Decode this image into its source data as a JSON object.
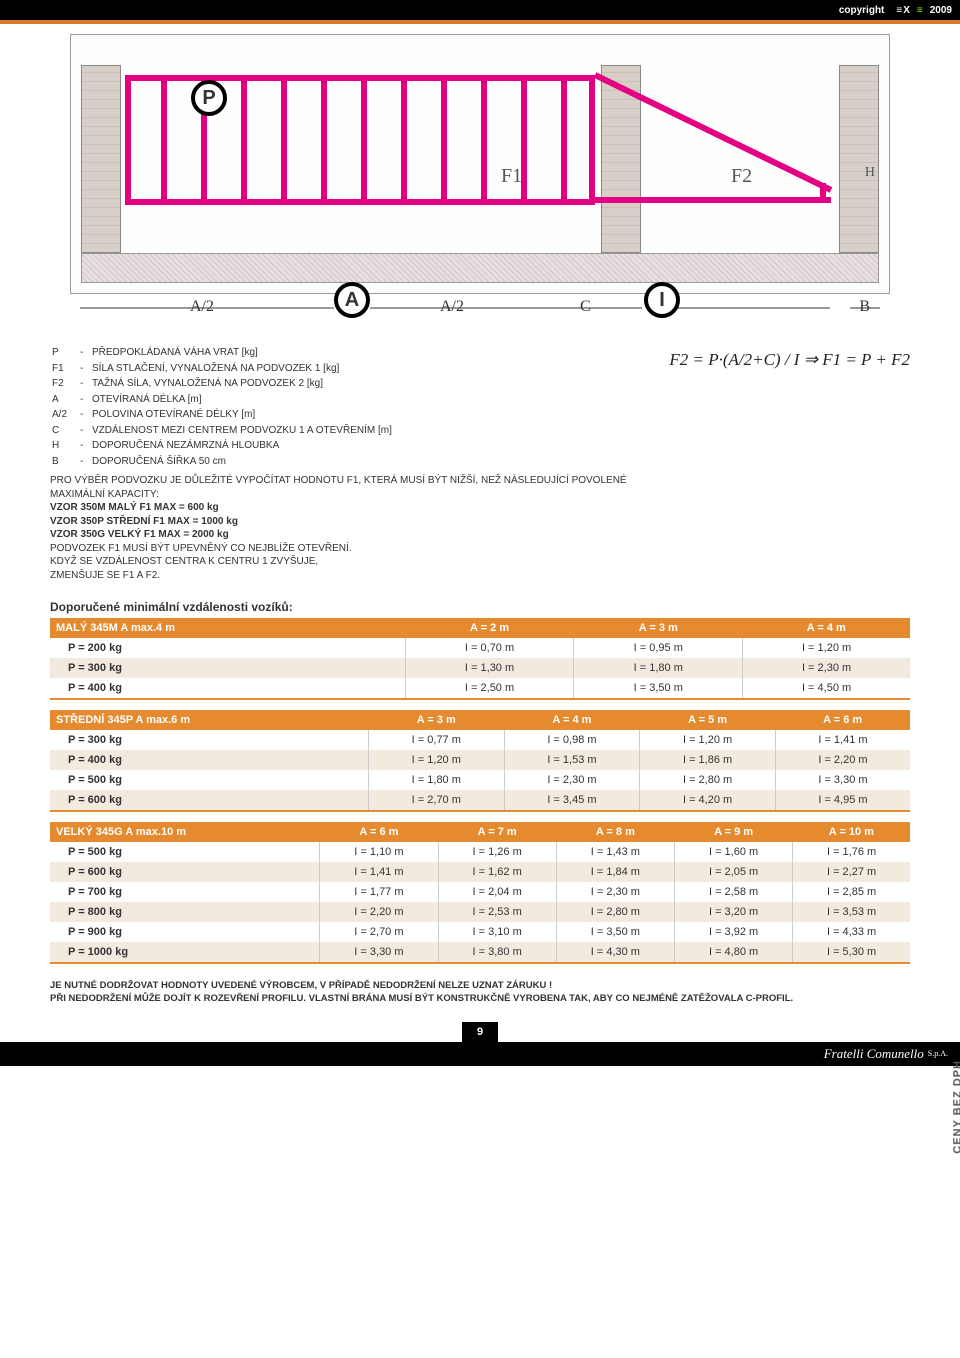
{
  "topbar": {
    "copyright": "copyright",
    "brand_a": "≡X",
    "brand_b": "≡",
    "year": "2009"
  },
  "diagram": {
    "P": "P",
    "A": "A",
    "I": "I",
    "F1": "F1",
    "F2": "F2",
    "A2a": "A/2",
    "A2b": "A/2",
    "C": "C",
    "B": "B",
    "H": "H",
    "formula": "F2 = P·(A/2+C) / I   ⇒   F1 = P + F2"
  },
  "defs": [
    [
      "P",
      "PŘEDPOKLÁDANÁ VÁHA VRAT [kg]"
    ],
    [
      "F1",
      "SÍLA STLAČENÍ, VYNALOŽENÁ NA PODVOZEK 1 [kg]"
    ],
    [
      "F2",
      "TAŽNÁ SÍLA, VYNALOŽENÁ NA PODVOZEK 2 [kg]"
    ],
    [
      "A",
      "OTEVÍRANÁ DÉLKA [m]"
    ],
    [
      "A/2",
      "POLOVINA OTEVÍRANÉ DÉLKY [m]"
    ],
    [
      "C",
      "VZDÁLENOST MEZI CENTREM PODVOZKU 1 A OTEVŘENÍM [m]"
    ],
    [
      "H",
      "DOPORUČENÁ NEZÁMRZNÁ HLOUBKA"
    ],
    [
      "B",
      "DOPORUČENÁ ŠÍŘKA 50 cm"
    ]
  ],
  "block_text": {
    "l1": "PRO VÝBĚR PODVOZKU JE DŮLEŽITÉ VYPOČÍTAT HODNOTU F1, KTERÁ MUSÍ BÝT NIŽŠÍ, NEŽ NÁSLEDUJÍCÍ POVOLENÉ MAXIMÁLNÍ KAPACITY:",
    "l2": "VZOR 350M MALÝ F1 MAX = 600 kg",
    "l3": "VZOR 350P STŘEDNÍ F1 MAX = 1000 kg",
    "l4": "VZOR 350G VELKÝ F1 MAX = 2000 kg",
    "l5": "PODVOZEK F1 MUSÍ BÝT UPEVNĚNÝ CO NEJBLÍŽE OTEVŘENÍ.",
    "l6": "KDYŽ SE VZDÁLENOST CENTRA K CENTRU 1 ZVYŠUJE,",
    "l7": "ZMENŠUJE SE F1 A F2."
  },
  "section_title": "Doporučené minimální vzdálenosti vozíků:",
  "tables": {
    "t1": {
      "header0": "MALÝ 345M A max.4 m",
      "cols": [
        "A = 2 m",
        "A = 3 m",
        "A = 4 m"
      ],
      "rows": [
        [
          "P = 200 kg",
          "I = 0,70 m",
          "I = 0,95 m",
          "I = 1,20 m"
        ],
        [
          "P = 300 kg",
          "I = 1,30 m",
          "I = 1,80 m",
          "I = 2,30 m"
        ],
        [
          "P = 400 kg",
          "I = 2,50 m",
          "I = 3,50 m",
          "I = 4,50 m"
        ]
      ],
      "alt": [
        false,
        true,
        false
      ]
    },
    "t2": {
      "header0": "STŘEDNÍ 345P A max.6 m",
      "cols": [
        "A = 3 m",
        "A = 4 m",
        "A = 5 m",
        "A = 6 m"
      ],
      "rows": [
        [
          "P = 300 kg",
          "I = 0,77 m",
          "I = 0,98 m",
          "I = 1,20 m",
          "I = 1,41 m"
        ],
        [
          "P = 400 kg",
          "I = 1,20 m",
          "I = 1,53 m",
          "I = 1,86 m",
          "I = 2,20 m"
        ],
        [
          "P = 500 kg",
          "I = 1,80 m",
          "I = 2,30 m",
          "I = 2,80 m",
          "I = 3,30 m"
        ],
        [
          "P = 600 kg",
          "I = 2,70 m",
          "I = 3,45 m",
          "I = 4,20 m",
          "I = 4,95 m"
        ]
      ],
      "alt": [
        false,
        true,
        false,
        true
      ]
    },
    "t3": {
      "header0": "VELKÝ 345G A max.10 m",
      "cols": [
        "A = 6 m",
        "A = 7 m",
        "A = 8 m",
        "A = 9 m",
        "A = 10 m"
      ],
      "rows": [
        [
          "P = 500 kg",
          "I = 1,10 m",
          "I = 1,26 m",
          "I = 1,43 m",
          "I = 1,60 m",
          "I = 1,76 m"
        ],
        [
          "P = 600 kg",
          "I = 1,41 m",
          "I = 1,62 m",
          "I = 1,84 m",
          "I = 2,05 m",
          "I = 2,27 m"
        ],
        [
          "P = 700 kg",
          "I = 1,77 m",
          "I = 2,04 m",
          "I = 2,30 m",
          "I = 2,58 m",
          "I = 2,85 m"
        ],
        [
          "P = 800 kg",
          "I = 2,20 m",
          "I = 2,53 m",
          "I = 2,80 m",
          "I = 3,20 m",
          "I = 3,53 m"
        ],
        [
          "P = 900 kg",
          "I = 2,70 m",
          "I = 3,10 m",
          "I = 3,50 m",
          "I = 3,92 m",
          "I = 4,33 m"
        ],
        [
          "P = 1000 kg",
          "I = 3,30 m",
          "I = 3,80 m",
          "I = 4,30 m",
          "I = 4,80 m",
          "I = 5,30 m"
        ]
      ],
      "alt": [
        false,
        true,
        false,
        true,
        false,
        true
      ]
    }
  },
  "footnote": {
    "l1": "JE NUTNÉ DODRŽOVAT HODNOTY UVEDENÉ VÝROBCEM, V PŘÍPADĚ NEDODRŽENÍ NELZE UZNAT ZÁRUKU !",
    "l2": "PŘI NEDODRŽENÍ MŮŽE DOJÍT K ROZEVŘENÍ PROFILU. VLASTNÍ BRÁNA MUSÍ BÝT KONSTRUKČNĚ VYROBENA TAK, ABY CO NEJMÉNĚ ZATĚŽOVALA C-PROFIL."
  },
  "pagenum": "9",
  "footer_brand": "Fratelli Comunello",
  "footer_sub": "S.p.A.",
  "side_label": "CENY BEZ DPH",
  "colors": {
    "orange": "#e58a2e",
    "magenta": "#e30083",
    "alt": "#f2e9df"
  }
}
